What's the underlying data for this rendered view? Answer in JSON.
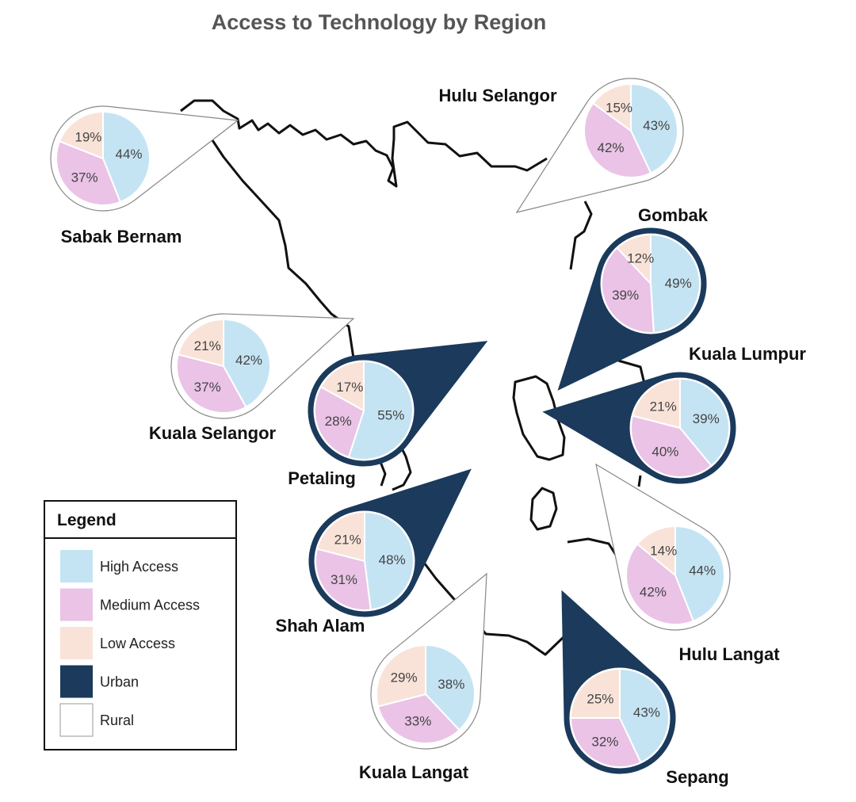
{
  "title": "Access to Technology by Region",
  "colors": {
    "high": "#c5e4f3",
    "medium": "#eac3e7",
    "low": "#f9e3d8",
    "urban": "#1b3a5c",
    "rural": "#ffffff"
  },
  "legend": {
    "title": "Legend",
    "items": [
      {
        "key": "high",
        "label": "High Access"
      },
      {
        "key": "medium",
        "label": "Medium Access"
      },
      {
        "key": "low",
        "label": "Low Access"
      },
      {
        "key": "urban",
        "label": "Urban"
      },
      {
        "key": "rural",
        "label": "Rural"
      }
    ]
  },
  "chart_data": {
    "type": "pie",
    "categories": [
      "High Access",
      "Medium Access",
      "Low Access"
    ],
    "regions": [
      {
        "name": "Sabak Bernam",
        "type": "Rural",
        "values": [
          44,
          37,
          19
        ]
      },
      {
        "name": "Hulu Selangor",
        "type": "Rural",
        "values": [
          43,
          42,
          15
        ]
      },
      {
        "name": "Gombak",
        "type": "Urban",
        "values": [
          49,
          39,
          12
        ]
      },
      {
        "name": "Kuala Selangor",
        "type": "Rural",
        "values": [
          42,
          37,
          21
        ]
      },
      {
        "name": "Petaling",
        "type": "Urban",
        "values": [
          55,
          28,
          17
        ]
      },
      {
        "name": "Kuala Lumpur",
        "type": "Urban",
        "values": [
          39,
          40,
          21
        ]
      },
      {
        "name": "Shah Alam",
        "type": "Urban",
        "values": [
          48,
          31,
          21
        ]
      },
      {
        "name": "Hulu Langat",
        "type": "Rural",
        "values": [
          44,
          42,
          14
        ]
      },
      {
        "name": "Kuala Langat",
        "type": "Rural",
        "values": [
          38,
          33,
          29
        ]
      },
      {
        "name": "Sepang",
        "type": "Urban",
        "values": [
          43,
          32,
          25
        ]
      }
    ]
  }
}
